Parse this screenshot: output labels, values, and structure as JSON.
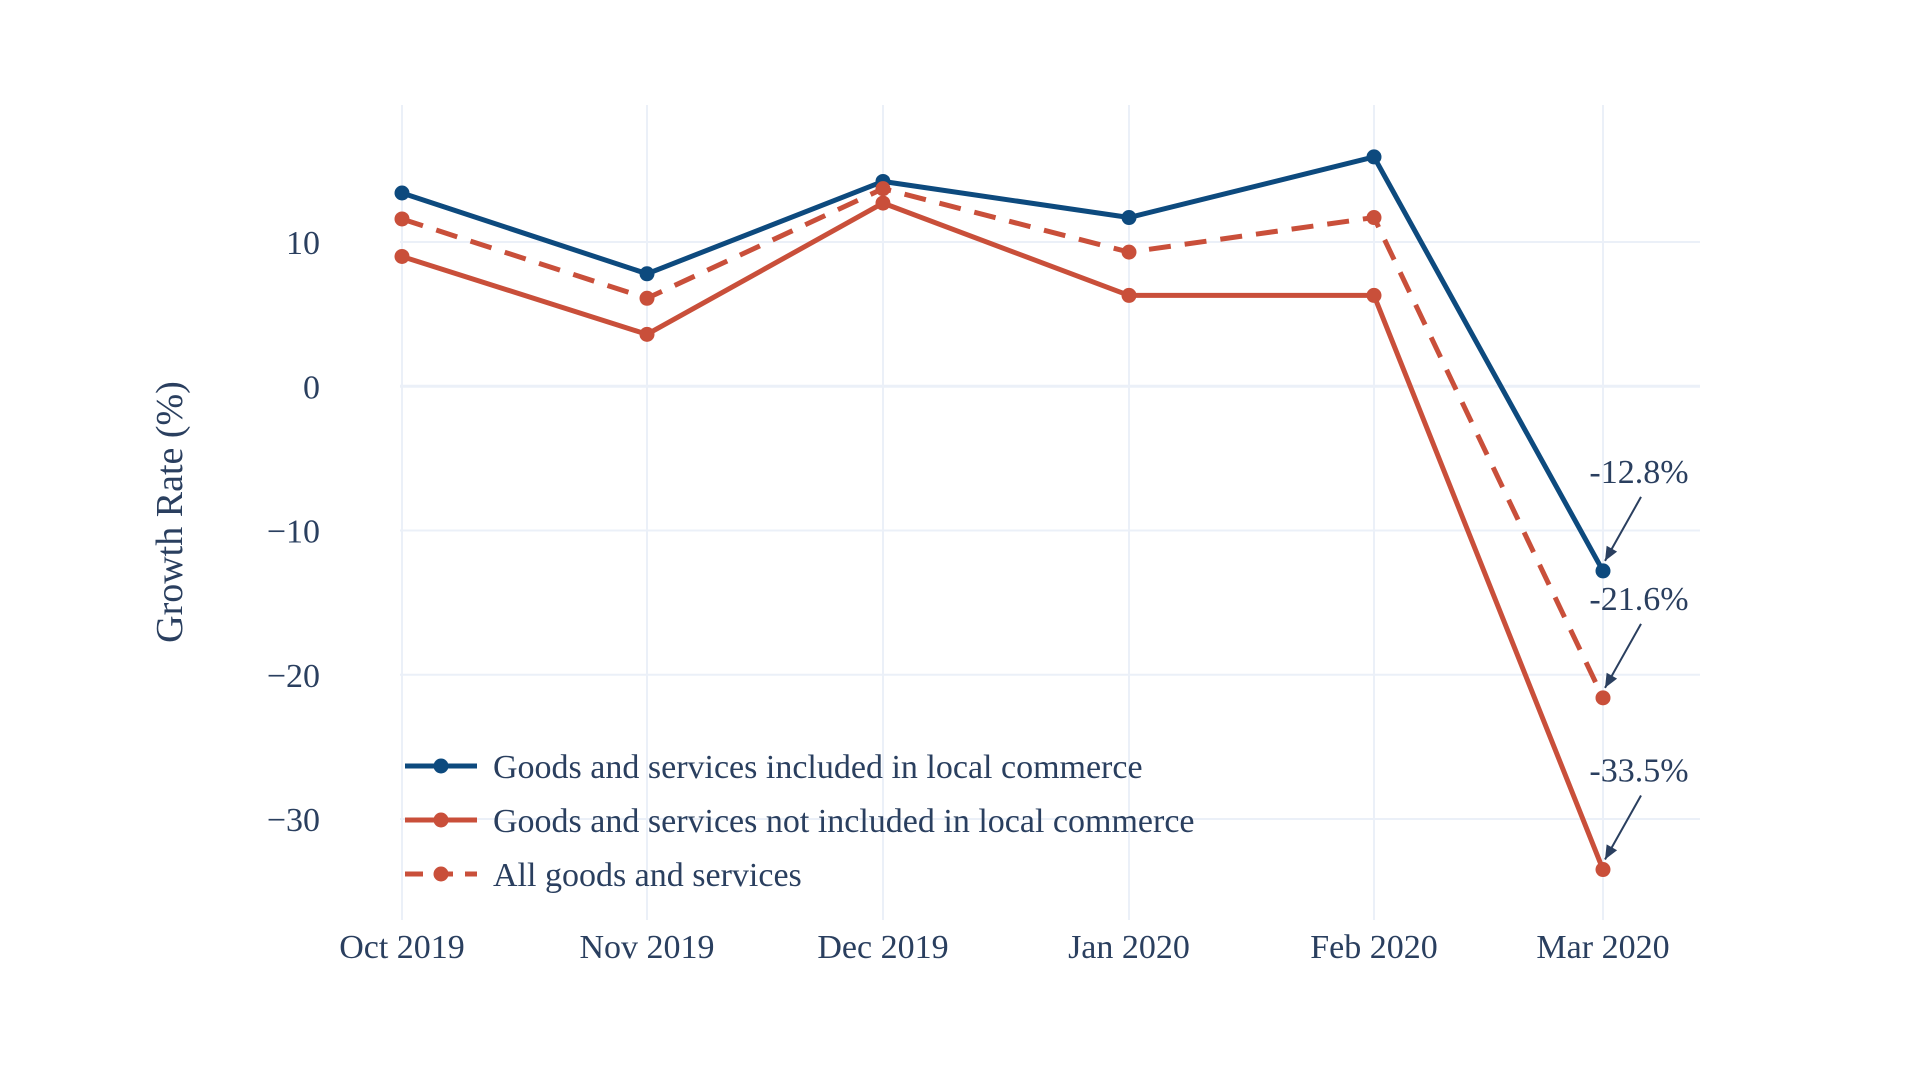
{
  "chart_data": {
    "type": "line",
    "categories": [
      "Oct 2019",
      "Nov 2019",
      "Dec 2019",
      "Jan 2020",
      "Feb 2020",
      "Mar 2020"
    ],
    "ylabel": "Growth Rate (%)",
    "xlabel": "",
    "ylim": [
      -37,
      19.5
    ],
    "yticks": [
      10,
      0,
      -10,
      -20,
      -30
    ],
    "ytick_labels": [
      "10",
      "0",
      "−10",
      "−20",
      "−30"
    ],
    "grid": true,
    "legend_position": "bottom-left",
    "series": [
      {
        "name": "Goods and services included in local commerce",
        "values": [
          13.4,
          7.8,
          14.2,
          11.7,
          15.9,
          -12.8
        ],
        "color": "#0d4a7e",
        "dash": "solid"
      },
      {
        "name": "Goods and services not included in local commerce",
        "values": [
          9.0,
          3.6,
          12.7,
          6.3,
          6.3,
          -33.5
        ],
        "color": "#c94f3a",
        "dash": "solid"
      },
      {
        "name": "All goods and services",
        "values": [
          11.6,
          6.1,
          13.7,
          9.3,
          11.7,
          -21.6
        ],
        "color": "#c94f3a",
        "dash": "dashed"
      }
    ],
    "annotations": [
      {
        "text": "-12.8%",
        "x": "Mar 2020",
        "y": -12.8
      },
      {
        "text": "-21.6%",
        "x": "Mar 2020",
        "y": -21.6
      },
      {
        "text": "-33.5%",
        "x": "Mar 2020",
        "y": -33.5
      }
    ]
  },
  "colors": {
    "text": "#2a3f5f",
    "grid": "#ebf0f8",
    "zeroline": "#ebf0f8"
  }
}
